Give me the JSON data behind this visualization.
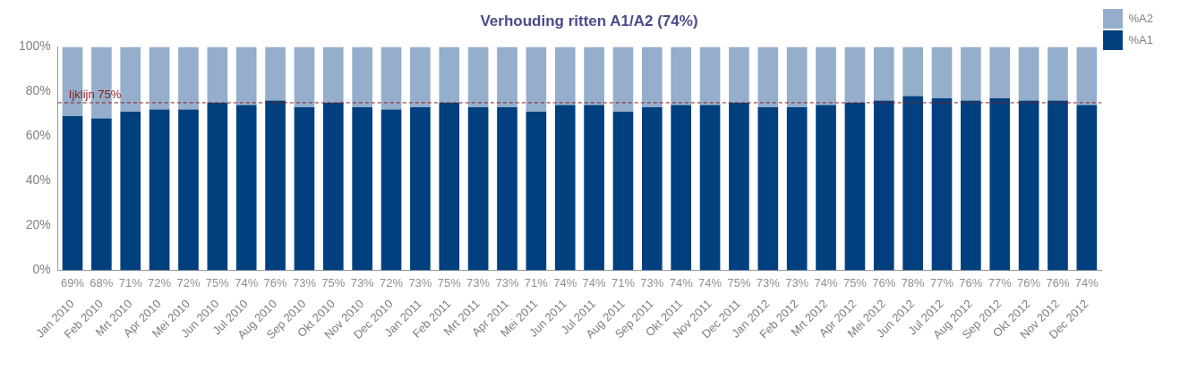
{
  "chart_data": {
    "type": "bar",
    "title": "Verhouding ritten A1/A2 (74%)",
    "stacked": true,
    "categories": [
      "Jan 2010",
      "Feb 2010",
      "Mrt 2010",
      "Apr 2010",
      "Mei 2010",
      "Jun 2010",
      "Jul 2010",
      "Aug 2010",
      "Sep 2010",
      "Okt 2010",
      "Nov 2010",
      "Dec 2010",
      "Jan 2011",
      "Feb 2011",
      "Mrt 2011",
      "Apr 2011",
      "Mei 2011",
      "Jun 2011",
      "Jul 2011",
      "Aug 2011",
      "Sep 2011",
      "Okt 2011",
      "Nov 2011",
      "Dec 2011",
      "Jan 2012",
      "Feb 2012",
      "Mrt 2012",
      "Apr 2012",
      "Mei 2012",
      "Jun 2012",
      "Jul 2012",
      "Aug 2012",
      "Sep 2012",
      "Okt 2012",
      "Nov 2012",
      "Dec 2012"
    ],
    "series": [
      {
        "name": "%A1",
        "color": "#00407f",
        "values": [
          69,
          68,
          71,
          72,
          72,
          75,
          74,
          76,
          73,
          75,
          73,
          72,
          73,
          75,
          73,
          73,
          71,
          74,
          74,
          71,
          73,
          74,
          74,
          75,
          73,
          73,
          74,
          75,
          76,
          78,
          77,
          76,
          77,
          76,
          76,
          74
        ],
        "value_labels": [
          "69%",
          "68%",
          "71%",
          "72%",
          "72%",
          "75%",
          "74%",
          "76%",
          "73%",
          "75%",
          "73%",
          "72%",
          "73%",
          "75%",
          "73%",
          "73%",
          "71%",
          "74%",
          "74%",
          "71%",
          "73%",
          "74%",
          "74%",
          "75%",
          "73%",
          "73%",
          "74%",
          "75%",
          "76%",
          "78%",
          "77%",
          "76%",
          "77%",
          "76%",
          "76%",
          "74%"
        ]
      },
      {
        "name": "%A2",
        "color": "#94aecb",
        "values": [
          31,
          32,
          29,
          28,
          28,
          25,
          26,
          24,
          27,
          25,
          27,
          28,
          27,
          25,
          27,
          27,
          29,
          26,
          26,
          29,
          27,
          26,
          26,
          25,
          27,
          27,
          26,
          25,
          24,
          22,
          23,
          24,
          23,
          24,
          24,
          26
        ]
      }
    ],
    "ylim": [
      0,
      100
    ],
    "yticks": [
      {
        "value": 0,
        "label": "0%"
      },
      {
        "value": 20,
        "label": "20%"
      },
      {
        "value": 40,
        "label": "40%"
      },
      {
        "value": 60,
        "label": "60%"
      },
      {
        "value": 80,
        "label": "80%"
      },
      {
        "value": 100,
        "label": "100%"
      }
    ],
    "grid": false,
    "legend": "top right",
    "ref_lines": [
      {
        "axis": "y",
        "value": 75,
        "label": "Ijklijn 75%",
        "color": "#8b1a1a",
        "line_style": "dashed"
      }
    ]
  }
}
